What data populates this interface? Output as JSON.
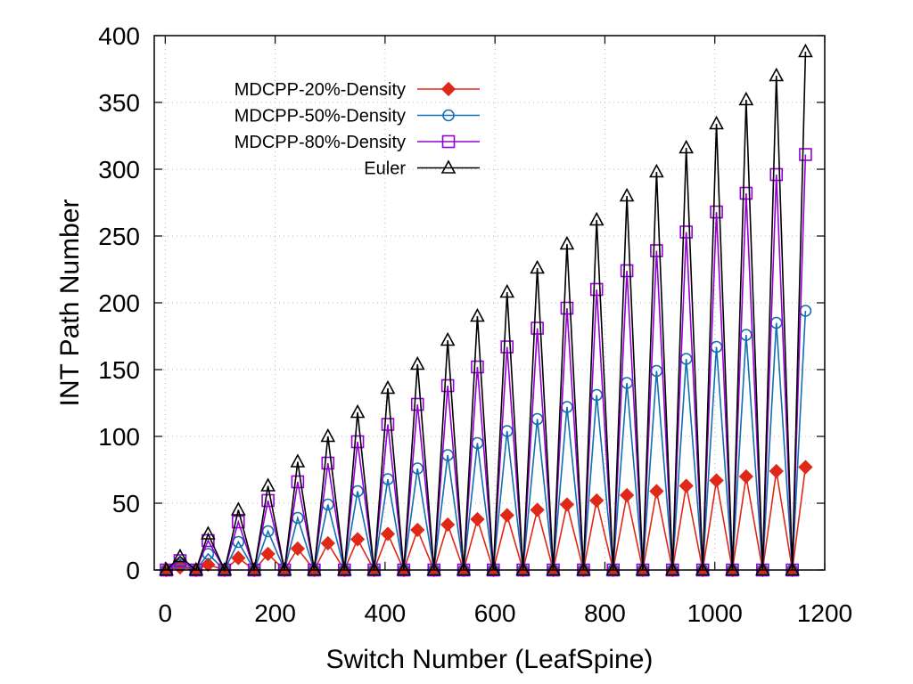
{
  "chart_data": {
    "type": "line",
    "title": "",
    "xlabel": "Switch Number (LeafSpine)",
    "ylabel": "INT Path Number",
    "xlim": [
      -20,
      1200
    ],
    "ylim": [
      0,
      400
    ],
    "xticks": [
      0,
      200,
      400,
      600,
      800,
      1000,
      1200
    ],
    "yticks": [
      0,
      50,
      100,
      150,
      200,
      250,
      300,
      350,
      400
    ],
    "grid": true,
    "legend_position": "top-left",
    "x": [
      2,
      27,
      56,
      78,
      108,
      133,
      162,
      187,
      217,
      241,
      271,
      296,
      326,
      350,
      380,
      405,
      434,
      459,
      489,
      514,
      543,
      568,
      597,
      622,
      651,
      677,
      706,
      731,
      761,
      785,
      815,
      840,
      869,
      894,
      923,
      948,
      978,
      1003,
      1032,
      1057,
      1087,
      1112,
      1141,
      1165
    ],
    "series": [
      {
        "name": "MDCPP-20%-Density",
        "color": "#e02818",
        "marker": "diamond-filled",
        "values": [
          0,
          2,
          0,
          4,
          0,
          9,
          0,
          12,
          0,
          16,
          0,
          20,
          0,
          23,
          0,
          27,
          0,
          30,
          0,
          34,
          0,
          38,
          0,
          41,
          0,
          45,
          0,
          49,
          0,
          52,
          0,
          56,
          0,
          59,
          0,
          63,
          0,
          67,
          0,
          70,
          0,
          74,
          0,
          77
        ]
      },
      {
        "name": "MDCPP-50%-Density",
        "color": "#1070b0",
        "marker": "circle-open",
        "values": [
          0,
          4,
          0,
          12,
          0,
          21,
          0,
          29,
          0,
          39,
          0,
          49,
          0,
          59,
          0,
          68,
          0,
          76,
          0,
          86,
          0,
          95,
          0,
          104,
          0,
          113,
          0,
          122,
          0,
          131,
          0,
          140,
          0,
          149,
          0,
          158,
          0,
          167,
          0,
          176,
          0,
          185,
          0,
          194
        ]
      },
      {
        "name": "MDCPP-80%-Density",
        "color": "#9400d3",
        "marker": "square-open",
        "values": [
          0,
          7,
          0,
          22,
          0,
          36,
          0,
          52,
          0,
          66,
          0,
          80,
          0,
          96,
          0,
          109,
          0,
          124,
          0,
          138,
          0,
          152,
          0,
          167,
          0,
          181,
          0,
          196,
          0,
          210,
          0,
          224,
          0,
          239,
          0,
          253,
          0,
          268,
          0,
          282,
          0,
          296,
          0,
          311
        ]
      },
      {
        "name": "Euler",
        "color": "#000000",
        "marker": "triangle-open",
        "values": [
          0,
          10,
          0,
          27,
          0,
          45,
          0,
          63,
          0,
          81,
          0,
          100,
          0,
          118,
          0,
          136,
          0,
          154,
          0,
          172,
          0,
          190,
          0,
          208,
          0,
          226,
          0,
          244,
          0,
          262,
          0,
          280,
          0,
          298,
          0,
          316,
          0,
          334,
          0,
          352,
          0,
          370,
          0,
          388
        ]
      }
    ]
  }
}
